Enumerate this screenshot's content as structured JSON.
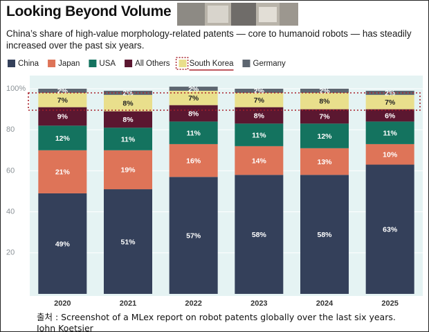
{
  "chart_data": {
    "type": "stacked_bar",
    "title": "Looking Beyond Volume",
    "subtitle": "China’s share of high-value morphology-related patents — core to humanoid robots — has steadily increased over the past six years.",
    "categories": [
      "2020",
      "2021",
      "2022",
      "2023",
      "2024",
      "2025"
    ],
    "series": [
      {
        "name": "China",
        "color": "#34405a",
        "values": [
          49,
          51,
          57,
          58,
          58,
          63
        ],
        "value_labels": [
          "49%",
          "51%",
          "57%",
          "58%",
          "58%",
          "63%"
        ]
      },
      {
        "name": "Japan",
        "color": "#de7458",
        "values": [
          21,
          19,
          16,
          14,
          13,
          10
        ],
        "value_labels": [
          "21%",
          "19%",
          "16%",
          "14%",
          "13%",
          "10%"
        ]
      },
      {
        "name": "USA",
        "color": "#14735f",
        "values": [
          12,
          11,
          11,
          11,
          12,
          11
        ],
        "value_labels": [
          "12%",
          "11%",
          "11%",
          "11%",
          "12%",
          "11%"
        ]
      },
      {
        "name": "All Others",
        "color": "#5b1730",
        "values": [
          9,
          8,
          8,
          8,
          7,
          6
        ],
        "value_labels": [
          "9%",
          "8%",
          "8%",
          "8%",
          "7%",
          "6%"
        ]
      },
      {
        "name": "South Korea",
        "color": "#e9df8c",
        "values": [
          7,
          8,
          7,
          7,
          8,
          7
        ],
        "value_labels": [
          "7%",
          "8%",
          "7%",
          "7%",
          "8%",
          "7%"
        ]
      },
      {
        "name": "Germany",
        "color": "#5d6670",
        "values": [
          2,
          2,
          2,
          2,
          2,
          2
        ],
        "value_labels": [
          "2%",
          "2%",
          "2%",
          "2%",
          "2%",
          "2%"
        ]
      }
    ],
    "ylim": [
      0,
      100
    ],
    "yticks": [
      20,
      40,
      60,
      80,
      {
        "value": 100,
        "label": "100%"
      }
    ],
    "grid": true,
    "source": "출처 : Screenshot of a MLex report on robot patents globally over the last six years.",
    "author": "John Koetsier"
  }
}
